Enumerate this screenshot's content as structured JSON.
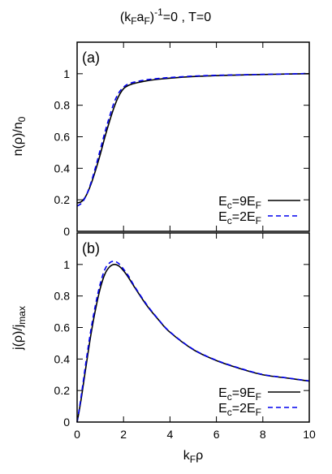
{
  "figure": {
    "title_main": "(k",
    "title_sub1": "F",
    "title_mid": "a",
    "title_sub2": "F",
    "title_close": ")",
    "title_sup": "-1",
    "title_tail": "=0 , T=0"
  },
  "chart_data": [
    {
      "type": "line",
      "panel_label": "(a)",
      "ylabel_main": "n(ρ)/n",
      "ylabel_sub": "0",
      "xlabel_main": "",
      "xlabel_sub": "",
      "xlim": [
        0,
        10
      ],
      "ylim": [
        0,
        1.2
      ],
      "xticks": [
        0,
        2,
        4,
        6,
        8,
        10
      ],
      "yticks": [
        0,
        0.2,
        0.4,
        0.6,
        0.8,
        1
      ],
      "ytick_labels": [
        "0",
        "0.2",
        "0.4",
        "0.6",
        "0.8",
        "1"
      ],
      "show_xtick_labels": false,
      "grid": false,
      "legend_position": "bottom-right",
      "series": [
        {
          "name": "E_c=9E_F",
          "legend_main": "E",
          "legend_sub1": "c",
          "legend_mid": "=9E",
          "legend_sub2": "F",
          "color": "#000000",
          "dash": "solid",
          "x": [
            0,
            0.2,
            0.4,
            0.6,
            0.8,
            1.0,
            1.2,
            1.4,
            1.6,
            1.8,
            2.0,
            2.2,
            2.5,
            3.0,
            3.5,
            4.0,
            5.0,
            6.0,
            7.0,
            8.0,
            9.0,
            10.0
          ],
          "y": [
            0.18,
            0.19,
            0.23,
            0.3,
            0.39,
            0.49,
            0.6,
            0.7,
            0.79,
            0.86,
            0.905,
            0.925,
            0.94,
            0.955,
            0.965,
            0.972,
            0.982,
            0.988,
            0.992,
            0.995,
            0.998,
            1.0
          ]
        },
        {
          "name": "E_c=2E_F",
          "legend_main": "E",
          "legend_sub1": "c",
          "legend_mid": "=2E",
          "legend_sub2": "F",
          "color": "#0000ee",
          "dash": "dashed",
          "x": [
            0,
            0.2,
            0.4,
            0.6,
            0.8,
            1.0,
            1.2,
            1.4,
            1.6,
            1.8,
            2.0,
            2.2,
            2.5,
            3.0,
            3.5,
            4.0,
            5.0,
            6.0,
            7.0,
            8.0,
            9.0,
            10.0
          ],
          "y": [
            0.16,
            0.18,
            0.23,
            0.31,
            0.41,
            0.52,
            0.63,
            0.73,
            0.82,
            0.88,
            0.915,
            0.935,
            0.948,
            0.962,
            0.97,
            0.976,
            0.985,
            0.99,
            0.993,
            0.996,
            0.998,
            1.002
          ]
        }
      ]
    },
    {
      "type": "line",
      "panel_label": "(b)",
      "ylabel_main": "j(ρ)/j",
      "ylabel_sub": "max",
      "xlabel_main": "k",
      "xlabel_sub": "F",
      "xlabel_tail": "ρ",
      "xlim": [
        0,
        10
      ],
      "ylim": [
        0,
        1.2
      ],
      "xticks": [
        0,
        2,
        4,
        6,
        8,
        10
      ],
      "xtick_labels": [
        "0",
        "2",
        "4",
        "6",
        "8",
        "10"
      ],
      "yticks": [
        0,
        0.2,
        0.4,
        0.6,
        0.8,
        1
      ],
      "ytick_labels": [
        "0",
        "0.2",
        "0.4",
        "0.6",
        "0.8",
        "1"
      ],
      "show_xtick_labels": true,
      "grid": false,
      "legend_position": "bottom-right",
      "series": [
        {
          "name": "E_c=9E_F",
          "legend_main": "E",
          "legend_sub1": "c",
          "legend_mid": "=9E",
          "legend_sub2": "F",
          "color": "#000000",
          "dash": "solid",
          "x": [
            0,
            0.1,
            0.2,
            0.4,
            0.6,
            0.8,
            1.0,
            1.2,
            1.4,
            1.6,
            1.8,
            2.0,
            2.2,
            2.5,
            3.0,
            3.5,
            4.0,
            5.0,
            6.0,
            7.0,
            8.0,
            9.0,
            10.0
          ],
          "y": [
            0.0,
            0.08,
            0.17,
            0.37,
            0.56,
            0.72,
            0.85,
            0.94,
            0.985,
            1.0,
            0.99,
            0.96,
            0.92,
            0.85,
            0.74,
            0.65,
            0.57,
            0.46,
            0.39,
            0.34,
            0.3,
            0.28,
            0.26
          ]
        },
        {
          "name": "E_c=2E_F",
          "legend_main": "E",
          "legend_sub1": "c",
          "legend_mid": "=2E",
          "legend_sub2": "F",
          "color": "#0000ee",
          "dash": "dashed",
          "x": [
            0,
            0.1,
            0.2,
            0.4,
            0.6,
            0.8,
            1.0,
            1.2,
            1.4,
            1.6,
            1.8,
            2.0,
            2.2,
            2.5,
            3.0,
            3.5,
            4.0,
            5.0,
            6.0,
            7.0,
            8.0,
            9.0,
            10.0
          ],
          "y": [
            0.0,
            0.09,
            0.19,
            0.4,
            0.59,
            0.75,
            0.88,
            0.97,
            1.01,
            1.02,
            1.005,
            0.97,
            0.93,
            0.855,
            0.745,
            0.652,
            0.572,
            0.462,
            0.392,
            0.342,
            0.302,
            0.281,
            0.261
          ]
        }
      ]
    }
  ]
}
